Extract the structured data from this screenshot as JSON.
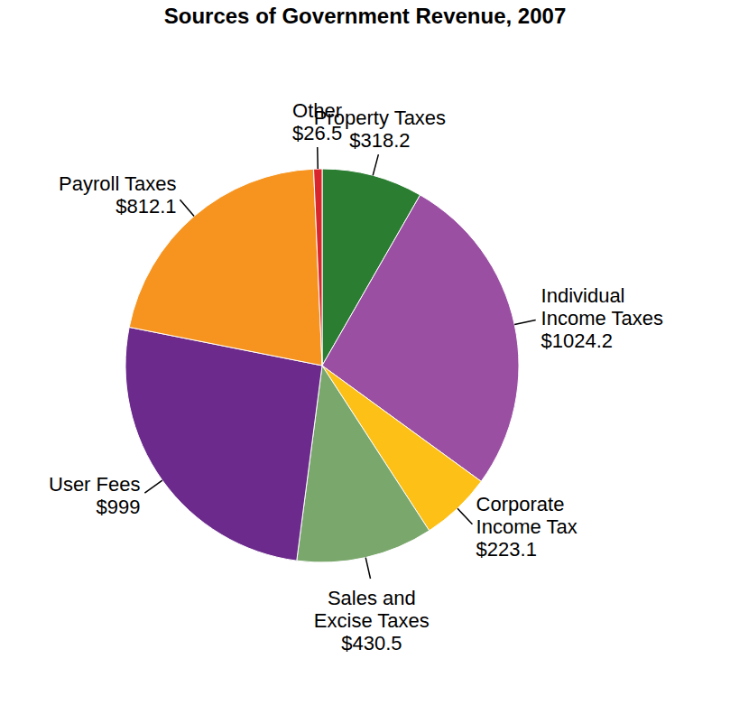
{
  "chart_data": {
    "type": "pie",
    "title": "Sources of Government Revenue, 2007",
    "categories": [
      "Property Taxes",
      "Individual Income Taxes",
      "Corporate Income Tax",
      "Sales and Excise Taxes",
      "User Fees",
      "Payroll Taxes",
      "Other"
    ],
    "values": [
      318.2,
      1024.2,
      223.1,
      430.5,
      999,
      812.1,
      26.5
    ],
    "value_labels": [
      "$318.2",
      "$1024.2",
      "$223.1",
      "$430.5",
      "$999",
      "$812.1",
      "$26.5"
    ],
    "colors": [
      "#2b7d32",
      "#9a4fa3",
      "#fcc016",
      "#7aa76c",
      "#6b2a8c",
      "#f6941f",
      "#d9262c"
    ],
    "data_labels": true,
    "legend": false
  }
}
